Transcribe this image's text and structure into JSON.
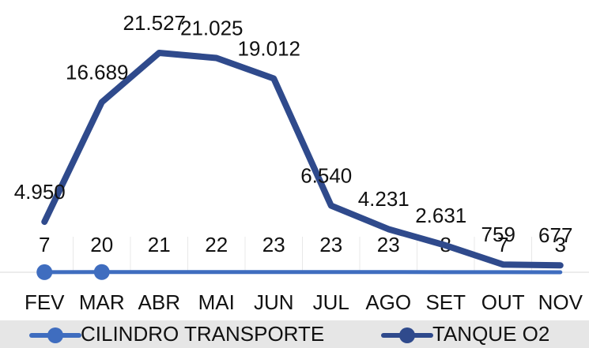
{
  "chart_data": {
    "type": "line",
    "categories": [
      "FEV",
      "MAR",
      "ABR",
      "MAI",
      "JUN",
      "JUL",
      "AGO",
      "SET",
      "OUT",
      "NOV"
    ],
    "series": [
      {
        "name": "CILINDRO TRANSPORTE",
        "color": "#3f6dbf",
        "values": [
          7,
          20,
          21,
          22,
          23,
          23,
          23,
          8,
          7,
          3
        ]
      },
      {
        "name": "TANQUE O2",
        "color": "#2f4a8c",
        "values": [
          4950,
          16689,
          21527,
          21025,
          19012,
          6540,
          4231,
          2631,
          759,
          677
        ],
        "value_labels": [
          "4.950",
          "16.689",
          "21.527",
          "21.025",
          "19.012",
          "6.540",
          "4.231",
          "2.631",
          "759",
          "677"
        ]
      }
    ],
    "legend": "bottom"
  }
}
